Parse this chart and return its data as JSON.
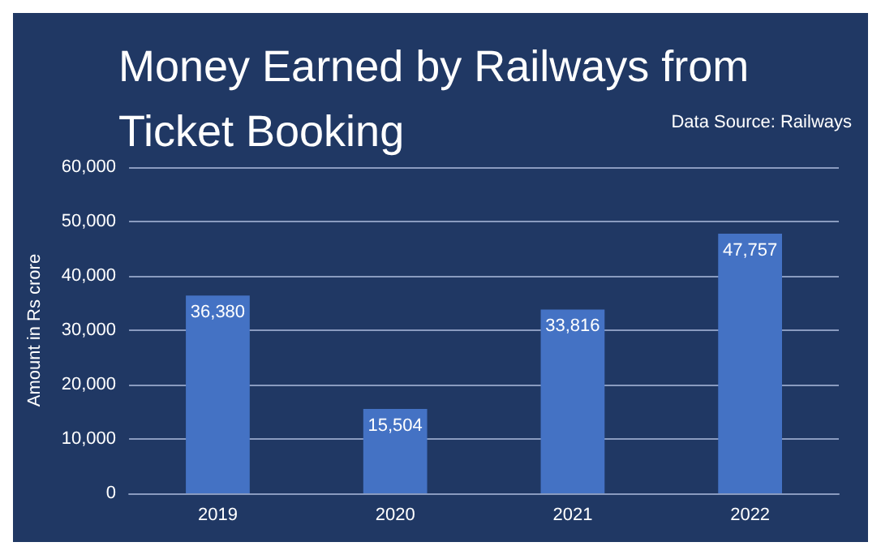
{
  "chart_data": {
    "type": "bar",
    "title": "Money Earned by Railways from\nTicket Booking",
    "annotations": [
      "Data Source: Railways"
    ],
    "ylabel": "Amount in Rs crore",
    "categories": [
      "2019",
      "2020",
      "2021",
      "2022"
    ],
    "values": [
      36380,
      15504,
      33816,
      47757
    ],
    "value_labels": [
      "36,380",
      "15,504",
      "33,816",
      "47,757"
    ],
    "color": "#4472c4",
    "ylim": [
      0,
      60000
    ],
    "yticks": [
      0,
      {
        "value": 10000,
        "label": "10,000"
      },
      {
        "value": 20000,
        "label": "20,000"
      },
      {
        "value": 30000,
        "label": "30,000"
      },
      {
        "value": 40000,
        "label": "40,000"
      },
      {
        "value": 50000,
        "label": "50,000"
      },
      {
        "value": 60000,
        "label": "60,000"
      }
    ],
    "grid": "y"
  }
}
